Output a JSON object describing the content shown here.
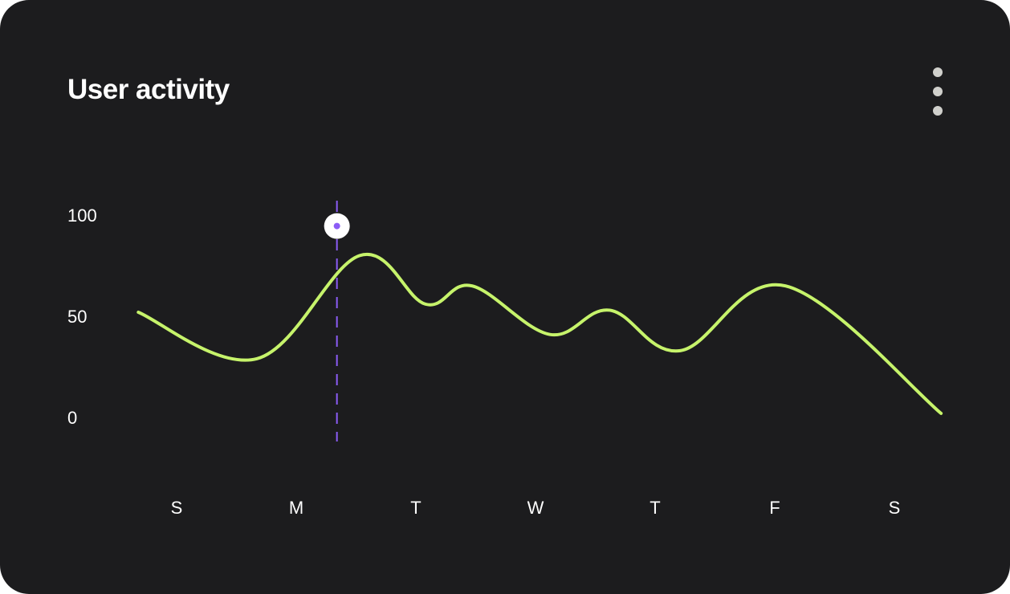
{
  "card": {
    "title": "User activity",
    "menu_icon": "more-vertical-icon"
  },
  "chart_data": {
    "type": "line",
    "title": "User activity",
    "xlabel": "",
    "ylabel": "",
    "ylim": [
      0,
      100
    ],
    "yticks": [
      "100",
      "50",
      "0"
    ],
    "ytick_values": [
      100,
      50,
      0
    ],
    "categories": [
      "S",
      "M",
      "T",
      "W",
      "T",
      "F",
      "S"
    ],
    "series": [
      {
        "name": "activity",
        "color": "#c6f36b",
        "x": [
          -0.32,
          0.67,
          1.53,
          2.08,
          2.47,
          3.12,
          3.62,
          4.21,
          5.09,
          6.39
        ],
        "values": [
          52,
          29,
          80,
          56,
          65,
          41,
          53,
          33,
          65,
          2
        ]
      }
    ],
    "highlight": {
      "x": 1.34,
      "value": 95,
      "color": "#8b5cf6"
    },
    "grid": false
  }
}
